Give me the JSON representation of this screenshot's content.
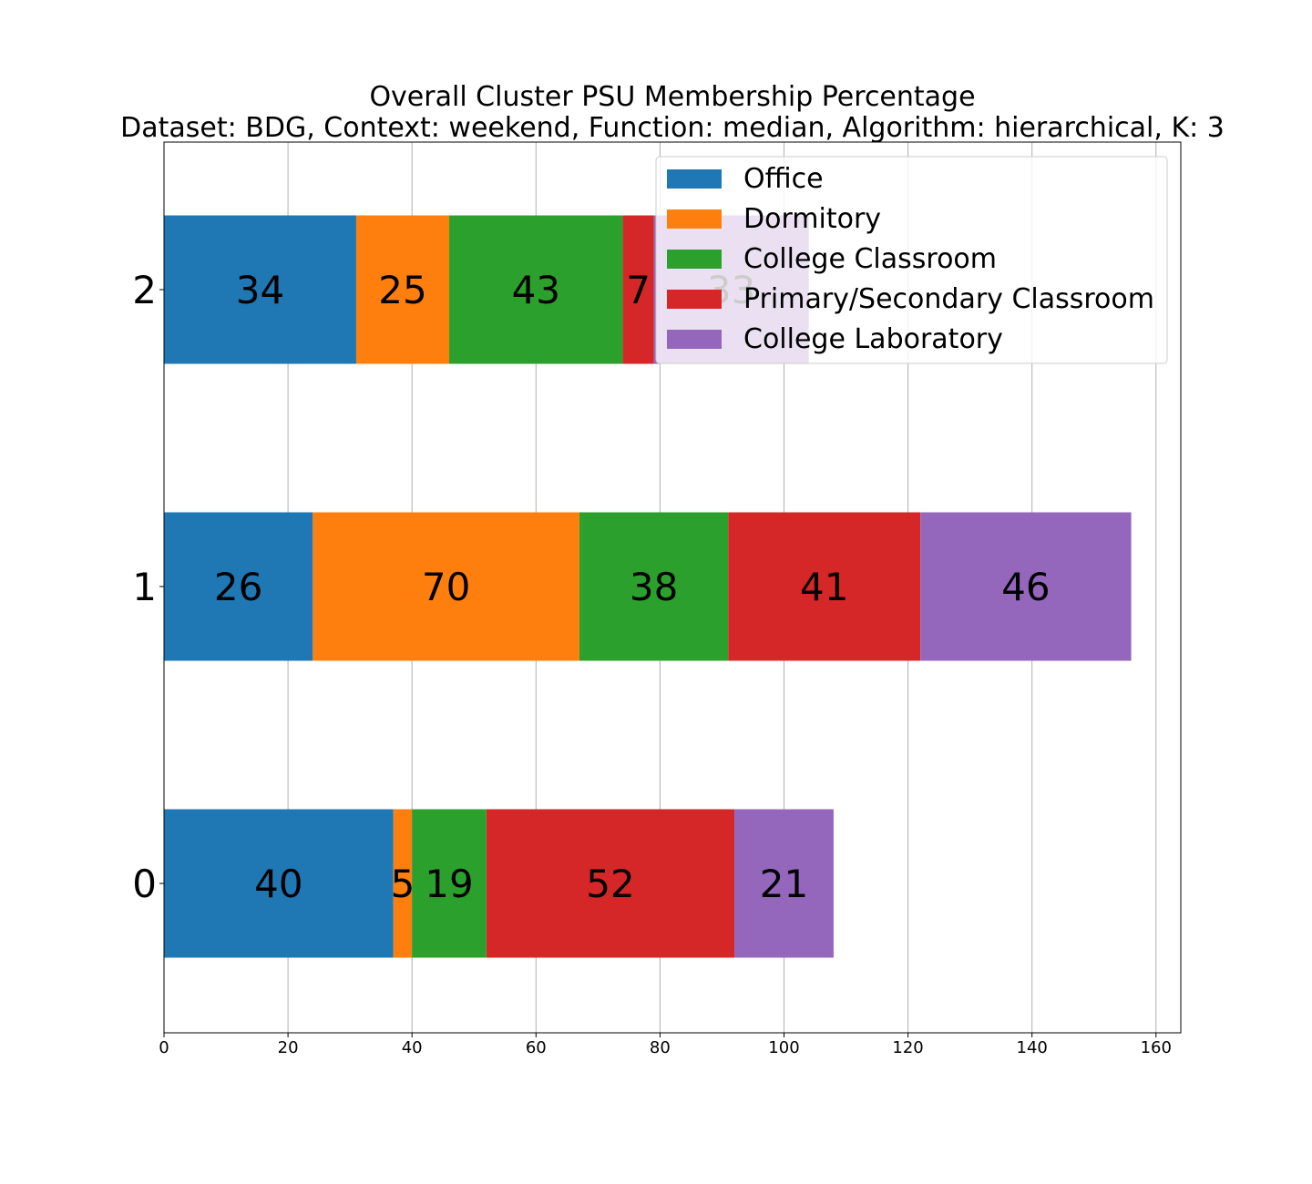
{
  "chart_data": {
    "type": "bar",
    "orientation": "horizontal",
    "stacked": true,
    "title": "Overall Cluster  PSU Membership Percentage",
    "subtitle": "Dataset: BDG, Context: weekend, Function: median, Algorithm: hierarchical, K: 3",
    "xlabel": "",
    "ylabel": "",
    "xlim": [
      0,
      164
    ],
    "x_ticks": [
      "0",
      "20",
      "40",
      "60",
      "80",
      "100",
      "120",
      "140",
      "160"
    ],
    "categories": [
      "0",
      "1",
      "2"
    ],
    "grid": "vertical",
    "legend_position": "top-right",
    "series": [
      {
        "name": "Office",
        "color": "#1f77b4",
        "values": [
          37,
          24,
          31
        ],
        "labels": [
          "40",
          "26",
          "34"
        ]
      },
      {
        "name": "Dormitory",
        "color": "#ff7f0e",
        "values": [
          3,
          43,
          15
        ],
        "labels": [
          "5",
          "70",
          "25"
        ]
      },
      {
        "name": "College Classroom",
        "color": "#2ca02c",
        "values": [
          12,
          24,
          28
        ],
        "labels": [
          "19",
          "38",
          "43"
        ]
      },
      {
        "name": "Primary/Secondary Classroom",
        "color": "#d62728",
        "values": [
          40,
          31,
          5
        ],
        "labels": [
          "52",
          "41",
          "7"
        ]
      },
      {
        "name": "College Laboratory",
        "color": "#9467bd",
        "values": [
          16,
          34,
          25
        ],
        "labels": [
          "21",
          "46",
          "33"
        ]
      }
    ]
  }
}
